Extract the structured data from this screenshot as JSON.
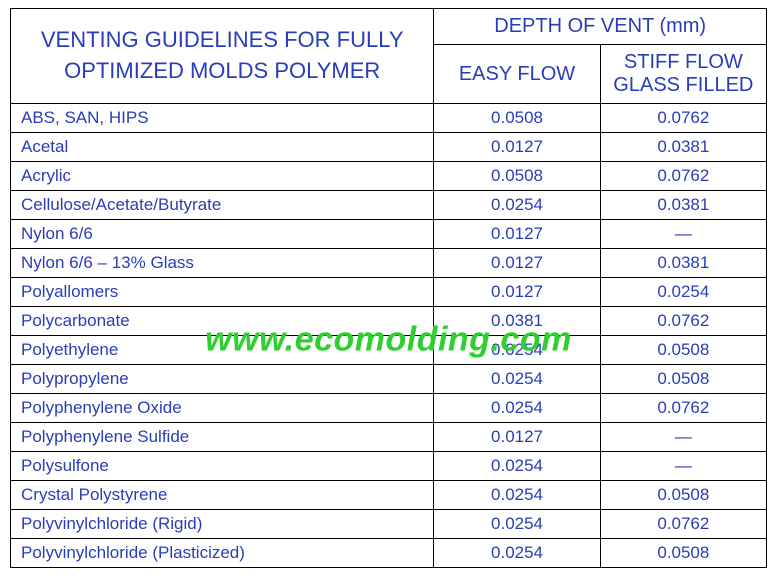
{
  "header": {
    "title_line1": "VENTING GUIDELINES FOR FULLY",
    "title_line2": "OPTIMIZED MOLDS POLYMER",
    "depth_header": "DEPTH OF VENT (mm)",
    "col_easy": "EASY FLOW",
    "col_stiff_line1": "STIFF FLOW",
    "col_stiff_line2": "GLASS FILLED"
  },
  "watermark": "www.ecomolding.com",
  "colors": {
    "text": "#2a3db8",
    "border": "#000000",
    "watermark": "#2fcf2f",
    "background": "#ffffff"
  },
  "rows": [
    {
      "polymer": "ABS, SAN, HIPS",
      "easy": "0.0508",
      "stiff": "0.0762"
    },
    {
      "polymer": "Acetal",
      "easy": "0.0127",
      "stiff": "0.0381"
    },
    {
      "polymer": "Acrylic",
      "easy": "0.0508",
      "stiff": "0.0762"
    },
    {
      "polymer": "Cellulose/Acetate/Butyrate",
      "easy": "0.0254",
      "stiff": "0.0381"
    },
    {
      "polymer": "Nylon 6/6",
      "easy": "0.0127",
      "stiff": "—"
    },
    {
      "polymer": "Nylon 6/6 – 13% Glass",
      "easy": "0.0127",
      "stiff": "0.0381"
    },
    {
      "polymer": "Polyallomers",
      "easy": "0.0127",
      "stiff": "0.0254"
    },
    {
      "polymer": "Polycarbonate",
      "easy": "0.0381",
      "stiff": "0.0762"
    },
    {
      "polymer": "Polyethylene",
      "easy": "0.0254",
      "stiff": "0.0508"
    },
    {
      "polymer": "Polypropylene",
      "easy": "0.0254",
      "stiff": "0.0508"
    },
    {
      "polymer": "Polyphenylene Oxide",
      "easy": "0.0254",
      "stiff": "0.0762"
    },
    {
      "polymer": "Polyphenylene Sulfide",
      "easy": "0.0127",
      "stiff": "—"
    },
    {
      "polymer": "Polysulfone",
      "easy": "0.0254",
      "stiff": "—"
    },
    {
      "polymer": "Crystal Polystyrene",
      "easy": "0.0254",
      "stiff": "0.0508"
    },
    {
      "polymer": "Polyvinylchloride (Rigid)",
      "easy": "0.0254",
      "stiff": "0.0762"
    },
    {
      "polymer": "Polyvinylchloride (Plasticized)",
      "easy": "0.0254",
      "stiff": "0.0508"
    }
  ]
}
